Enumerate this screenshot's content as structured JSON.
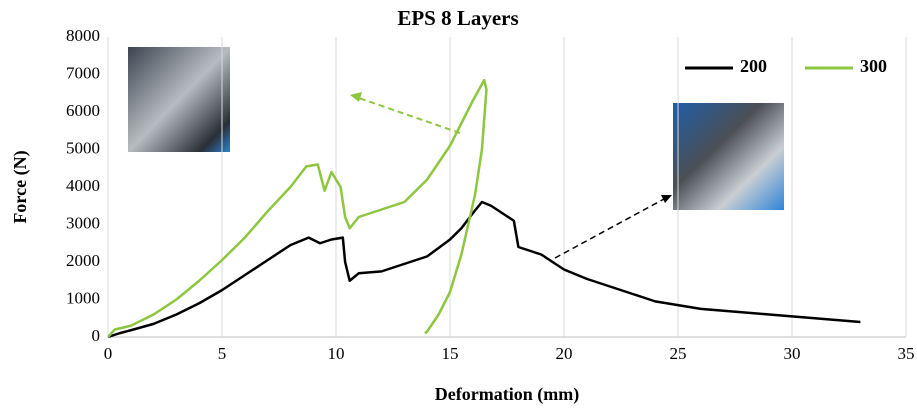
{
  "chart_data": {
    "type": "line",
    "title": "EPS 8 Layers",
    "x_label": "Deformation (mm)",
    "y_label": "Force (N)",
    "xlim": [
      0,
      35
    ],
    "xticks": [
      0,
      5,
      10,
      15,
      20,
      25,
      30,
      35
    ],
    "ylim": [
      0,
      8000
    ],
    "yticks": [
      0,
      1000,
      2000,
      3000,
      4000,
      5000,
      6000,
      7000,
      8000
    ],
    "grid": "x",
    "legend": "top-right",
    "series": [
      {
        "name": "200",
        "color": "#000000",
        "x": [
          0,
          0.5,
          1,
          2,
          3,
          4,
          5,
          6,
          7,
          8,
          8.8,
          9.3,
          9.8,
          10.3,
          10.4,
          10.6,
          11,
          12,
          13,
          14,
          15,
          15.5,
          16,
          16.4,
          16.8,
          17.3,
          17.8,
          18,
          18.5,
          19,
          19.5,
          20,
          21,
          22,
          23,
          24,
          25,
          26,
          27,
          28,
          29,
          30,
          31,
          32,
          33
        ],
        "values": [
          0,
          100,
          180,
          350,
          600,
          900,
          1250,
          1650,
          2050,
          2450,
          2650,
          2500,
          2600,
          2650,
          2000,
          1500,
          1700,
          1750,
          1950,
          2150,
          2600,
          2900,
          3300,
          3600,
          3500,
          3300,
          3100,
          2400,
          2300,
          2200,
          2000,
          1800,
          1550,
          1350,
          1150,
          950,
          850,
          750,
          700,
          650,
          600,
          550,
          500,
          450,
          400
        ]
      },
      {
        "name": "300",
        "color": "#8dc63f",
        "x": [
          0,
          0.3,
          1,
          2,
          3,
          4,
          5,
          6,
          7,
          8,
          8.7,
          9.2,
          9.5,
          9.8,
          10.2,
          10.4,
          10.6,
          11,
          12,
          13,
          14,
          15,
          15.5,
          16,
          16.5,
          16.6,
          16.4,
          16.1,
          15.8,
          15.5,
          15,
          14.5,
          14,
          13.9
        ],
        "values": [
          0,
          200,
          300,
          600,
          1000,
          1500,
          2050,
          2650,
          3350,
          4000,
          4550,
          4600,
          3900,
          4400,
          4000,
          3200,
          2900,
          3200,
          3400,
          3600,
          4200,
          5100,
          5700,
          6300,
          6850,
          6600,
          5000,
          3800,
          3000,
          2200,
          1200,
          600,
          150,
          100
        ]
      }
    ]
  }
}
